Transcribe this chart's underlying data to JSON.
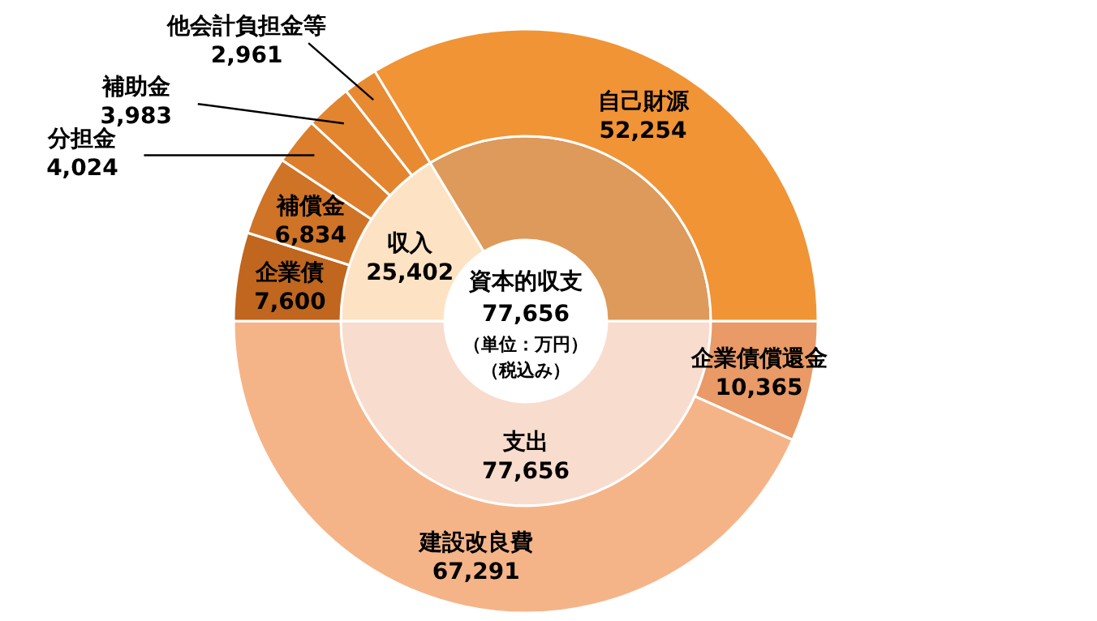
{
  "chart_data": [
    {
      "type": "donut",
      "title": "資本的収支",
      "annotations": [
        "77,656",
        "（単位：万円）",
        "（税込み）"
      ],
      "categories": [
        "支出",
        "収入",
        null
      ],
      "values": [
        77656,
        25402,
        52254
      ],
      "value_labels": [
        "77,656",
        "25,402",
        null
      ],
      "colors": [
        "#f8dccd",
        "#fde3c4",
        "#dd9a5a"
      ]
    },
    {
      "type": "donut",
      "categories": [
        "企業債償還金",
        "建設改良費",
        "企業債",
        "補償金",
        "分担金",
        "補助金",
        "他会計負担金等",
        "自己財源"
      ],
      "values": [
        10365,
        67291,
        7600,
        6834,
        4024,
        3983,
        2961,
        52254
      ],
      "value_labels": [
        "10,365",
        "67,291",
        "7,600",
        "6,834",
        "4,024",
        "3,983",
        "2,961",
        "52,254"
      ],
      "colors": [
        "#e99a66",
        "#f5b488",
        "#c0661e",
        "#cf7326",
        "#dc7e2b",
        "#e3852f",
        "#e88a31",
        "#f09436"
      ]
    }
  ]
}
